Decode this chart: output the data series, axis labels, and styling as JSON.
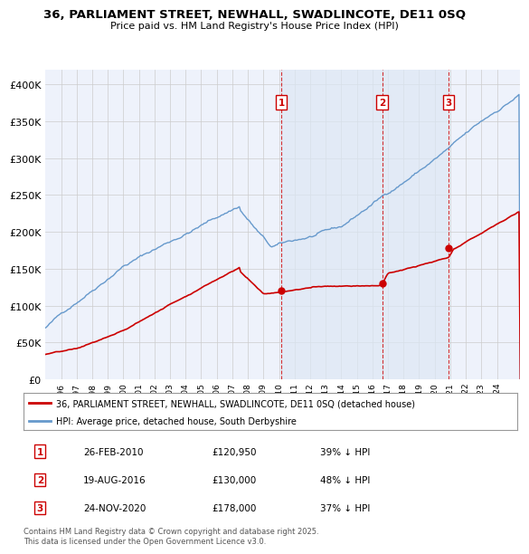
{
  "title_line1": "36, PARLIAMENT STREET, NEWHALL, SWADLINCOTE, DE11 0SQ",
  "title_line2": "Price paid vs. HM Land Registry's House Price Index (HPI)",
  "legend_label_red": "36, PARLIAMENT STREET, NEWHALL, SWADLINCOTE, DE11 0SQ (detached house)",
  "legend_label_blue": "HPI: Average price, detached house, South Derbyshire",
  "transactions": [
    {
      "num": 1,
      "date": "26-FEB-2010",
      "price": "£120,950",
      "pct": "39% ↓ HPI",
      "x_year": 2010.15,
      "y_price": 120950
    },
    {
      "num": 2,
      "date": "19-AUG-2016",
      "price": "£130,000",
      "pct": "48% ↓ HPI",
      "x_year": 2016.63,
      "y_price": 130000
    },
    {
      "num": 3,
      "date": "24-NOV-2020",
      "price": "£178,000",
      "pct": "37% ↓ HPI",
      "x_year": 2020.9,
      "y_price": 178000
    }
  ],
  "ylim": [
    0,
    420000
  ],
  "yticks": [
    0,
    50000,
    100000,
    150000,
    200000,
    250000,
    300000,
    350000,
    400000
  ],
  "ytick_labels": [
    "£0",
    "£50K",
    "£100K",
    "£150K",
    "£200K",
    "£250K",
    "£300K",
    "£350K",
    "£400K"
  ],
  "xlim_start": 1995.0,
  "xlim_end": 2025.5,
  "xlabel_years": [
    1996,
    1997,
    1998,
    1999,
    2000,
    2001,
    2002,
    2003,
    2004,
    2005,
    2006,
    2007,
    2008,
    2009,
    2010,
    2011,
    2012,
    2013,
    2014,
    2015,
    2016,
    2017,
    2018,
    2019,
    2020,
    2021,
    2022,
    2023,
    2024
  ],
  "red_color": "#cc0000",
  "blue_color": "#6699cc",
  "shade_color": "#dde8f5",
  "background_color": "#eef2fb",
  "grid_color": "#cccccc",
  "footer_text": "Contains HM Land Registry data © Crown copyright and database right 2025.\nThis data is licensed under the Open Government Licence v3.0."
}
